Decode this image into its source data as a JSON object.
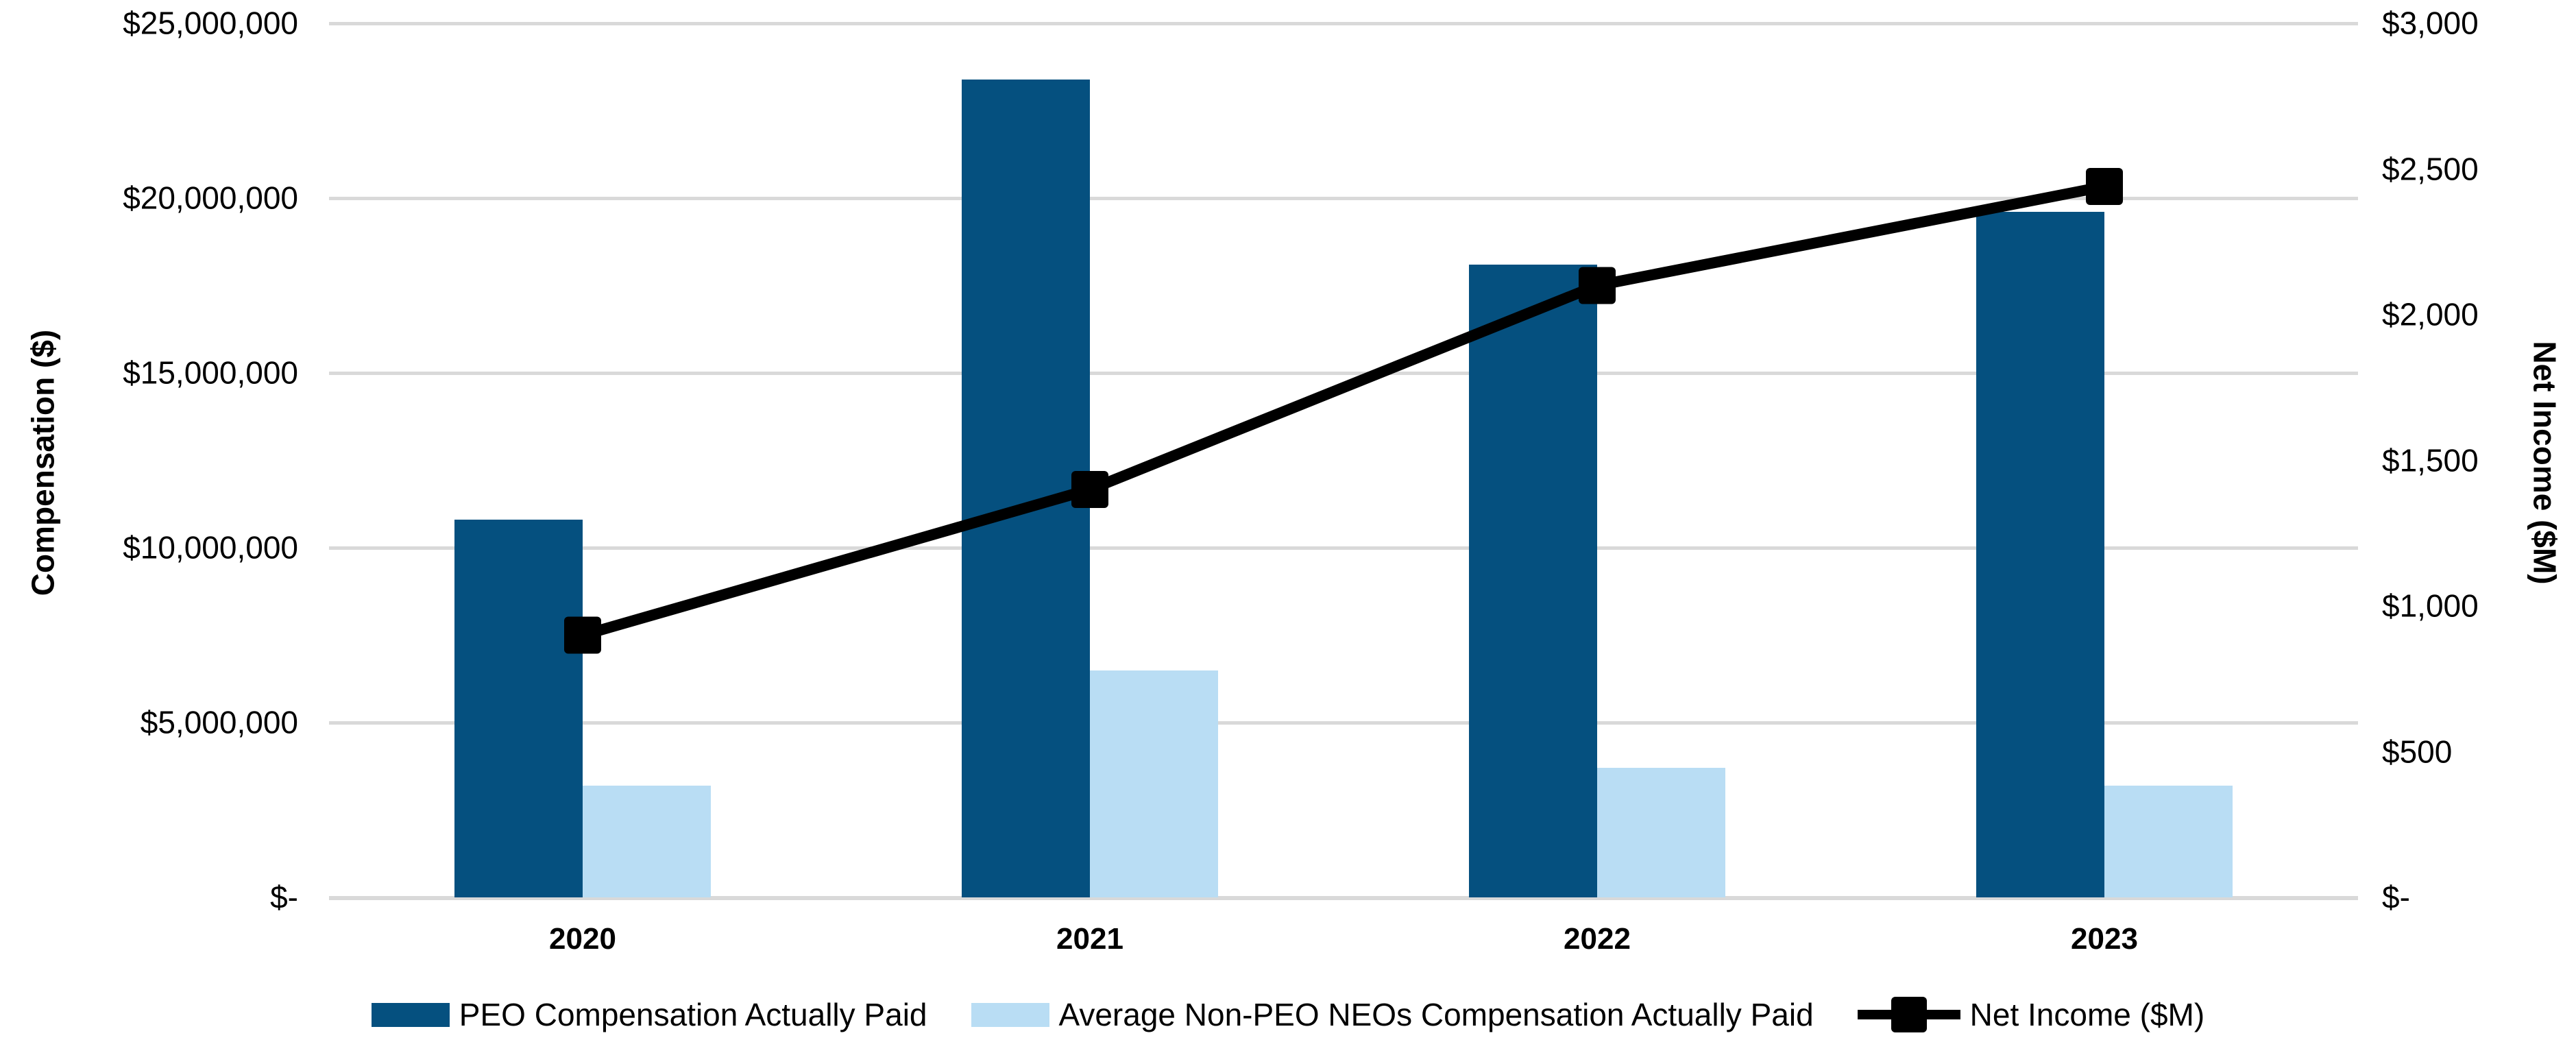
{
  "chart_data": {
    "type": "bar",
    "subtype": "combo-bar-line-dual-axis",
    "categories": [
      "2020",
      "2021",
      "2022",
      "2023"
    ],
    "series": [
      {
        "name": "PEO Compensation Actually Paid",
        "type": "bar",
        "axis": "left",
        "color": "#05507F",
        "values": [
          10800000,
          23400000,
          18100000,
          19600000
        ]
      },
      {
        "name": "Average Non-PEO NEOs Compensation Actually Paid",
        "type": "bar",
        "axis": "left",
        "color": "#B9DDF4",
        "values": [
          3200000,
          6500000,
          3700000,
          3200000
        ]
      },
      {
        "name": "Net Income ($M)",
        "type": "line",
        "axis": "right",
        "color": "#000000",
        "marker": "square",
        "values": [
          900,
          1400,
          2100,
          2440
        ]
      }
    ],
    "left_axis": {
      "title": "Compensation ($)",
      "min": 0,
      "max": 25000000,
      "tick_values": [
        25000000,
        20000000,
        15000000,
        10000000,
        5000000,
        0
      ],
      "tick_labels": [
        "$25,000,000",
        "$20,000,000",
        "$15,000,000",
        "$10,000,000",
        "$5,000,000",
        "$-"
      ]
    },
    "right_axis": {
      "title": "Net Income ($M)",
      "min": 0,
      "max": 3000,
      "tick_values": [
        3000,
        2500,
        2000,
        1500,
        1000,
        500,
        0
      ],
      "tick_labels": [
        "$3,000",
        "$2,500",
        "$2,000",
        "$1,500",
        "$1,000",
        "$500",
        "$-"
      ]
    },
    "grid": true,
    "legend_position": "bottom",
    "colors": {
      "grid": "#D9D9D9",
      "background": "#FFFFFF",
      "text": "#000000"
    }
  }
}
